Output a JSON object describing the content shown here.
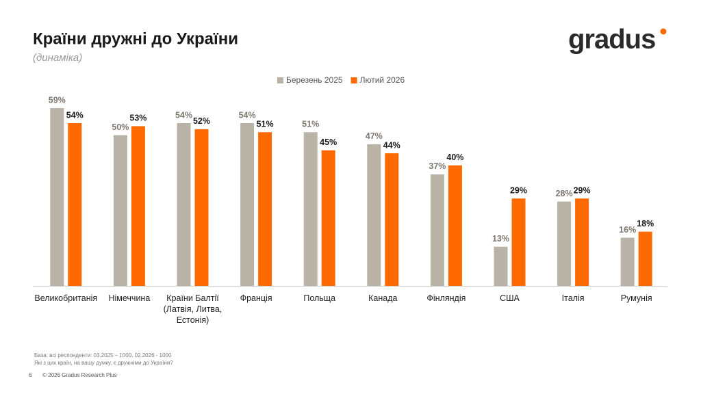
{
  "header": {
    "title": "Країни дружні до України",
    "subtitle": "(динаміка)",
    "logo": "gradus"
  },
  "chart_data": {
    "type": "grouped_bar",
    "categories": [
      "Великобританія",
      "Німеччина",
      "Країни Балтії (Латвія, Литва, Естонія)",
      "Франція",
      "Польща",
      "Канада",
      "Фінляндія",
      "США",
      "Італія",
      "Румунія"
    ],
    "series": [
      {
        "name": "Березень 2025",
        "color": "#b8b2a7",
        "label_color": "#7d786f",
        "values": [
          59,
          50,
          54,
          54,
          51,
          47,
          37,
          13,
          28,
          16
        ],
        "value_labels": [
          "59%",
          "50%",
          "54%",
          "54%",
          "51%",
          "47%",
          "37%",
          "13%",
          "28%",
          "16%"
        ]
      },
      {
        "name": "Лютий 2026",
        "color": "#ff6a00",
        "label_color": "#1a1a1a",
        "values": [
          54,
          53,
          52,
          51,
          45,
          44,
          40,
          29,
          29,
          18
        ],
        "value_labels": [
          "54%",
          "53%",
          "52%",
          "51%",
          "45%",
          "44%",
          "40%",
          "29%",
          "29%",
          "18%"
        ]
      }
    ]
  },
  "footer": {
    "notes": [
      "База: всі респонденти: 03.2025 – 1000, 02.2026 - 1000",
      "Які з цих країн, на вашу думку, є дружніми до України?"
    ],
    "page": "6",
    "copyright": "© 2026 Gradus Research Plus"
  }
}
